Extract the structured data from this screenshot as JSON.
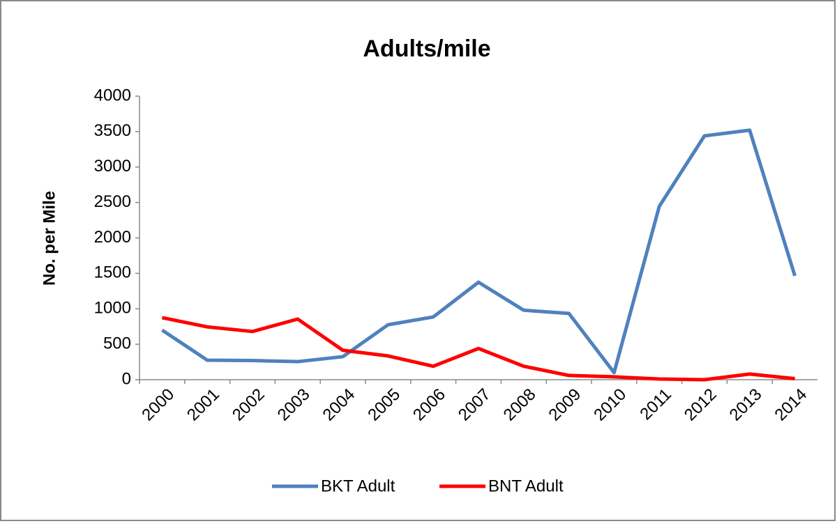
{
  "chart_data": {
    "type": "line",
    "title": "Adults/mile",
    "y_label": "No. per Mile",
    "categories": [
      "2000",
      "2001",
      "2002",
      "2003",
      "2004",
      "2005",
      "2006",
      "2007",
      "2008",
      "2009",
      "2010",
      "2011",
      "2012",
      "2013",
      "2014"
    ],
    "series": [
      {
        "name": "BKT Adult",
        "color": "#4f81bd",
        "values": [
          700,
          275,
          270,
          255,
          325,
          775,
          885,
          1375,
          980,
          935,
          100,
          2445,
          3440,
          3520,
          1465
        ]
      },
      {
        "name": "BNT Adult",
        "color": "#ff0000",
        "values": [
          875,
          745,
          680,
          855,
          415,
          335,
          190,
          440,
          190,
          60,
          40,
          10,
          0,
          80,
          15
        ]
      }
    ],
    "ylim": [
      0,
      4000
    ],
    "yticks": [
      0,
      500,
      1000,
      1500,
      2000,
      2500,
      3000,
      3500,
      4000
    ],
    "grid": false,
    "legend": "bottom"
  }
}
